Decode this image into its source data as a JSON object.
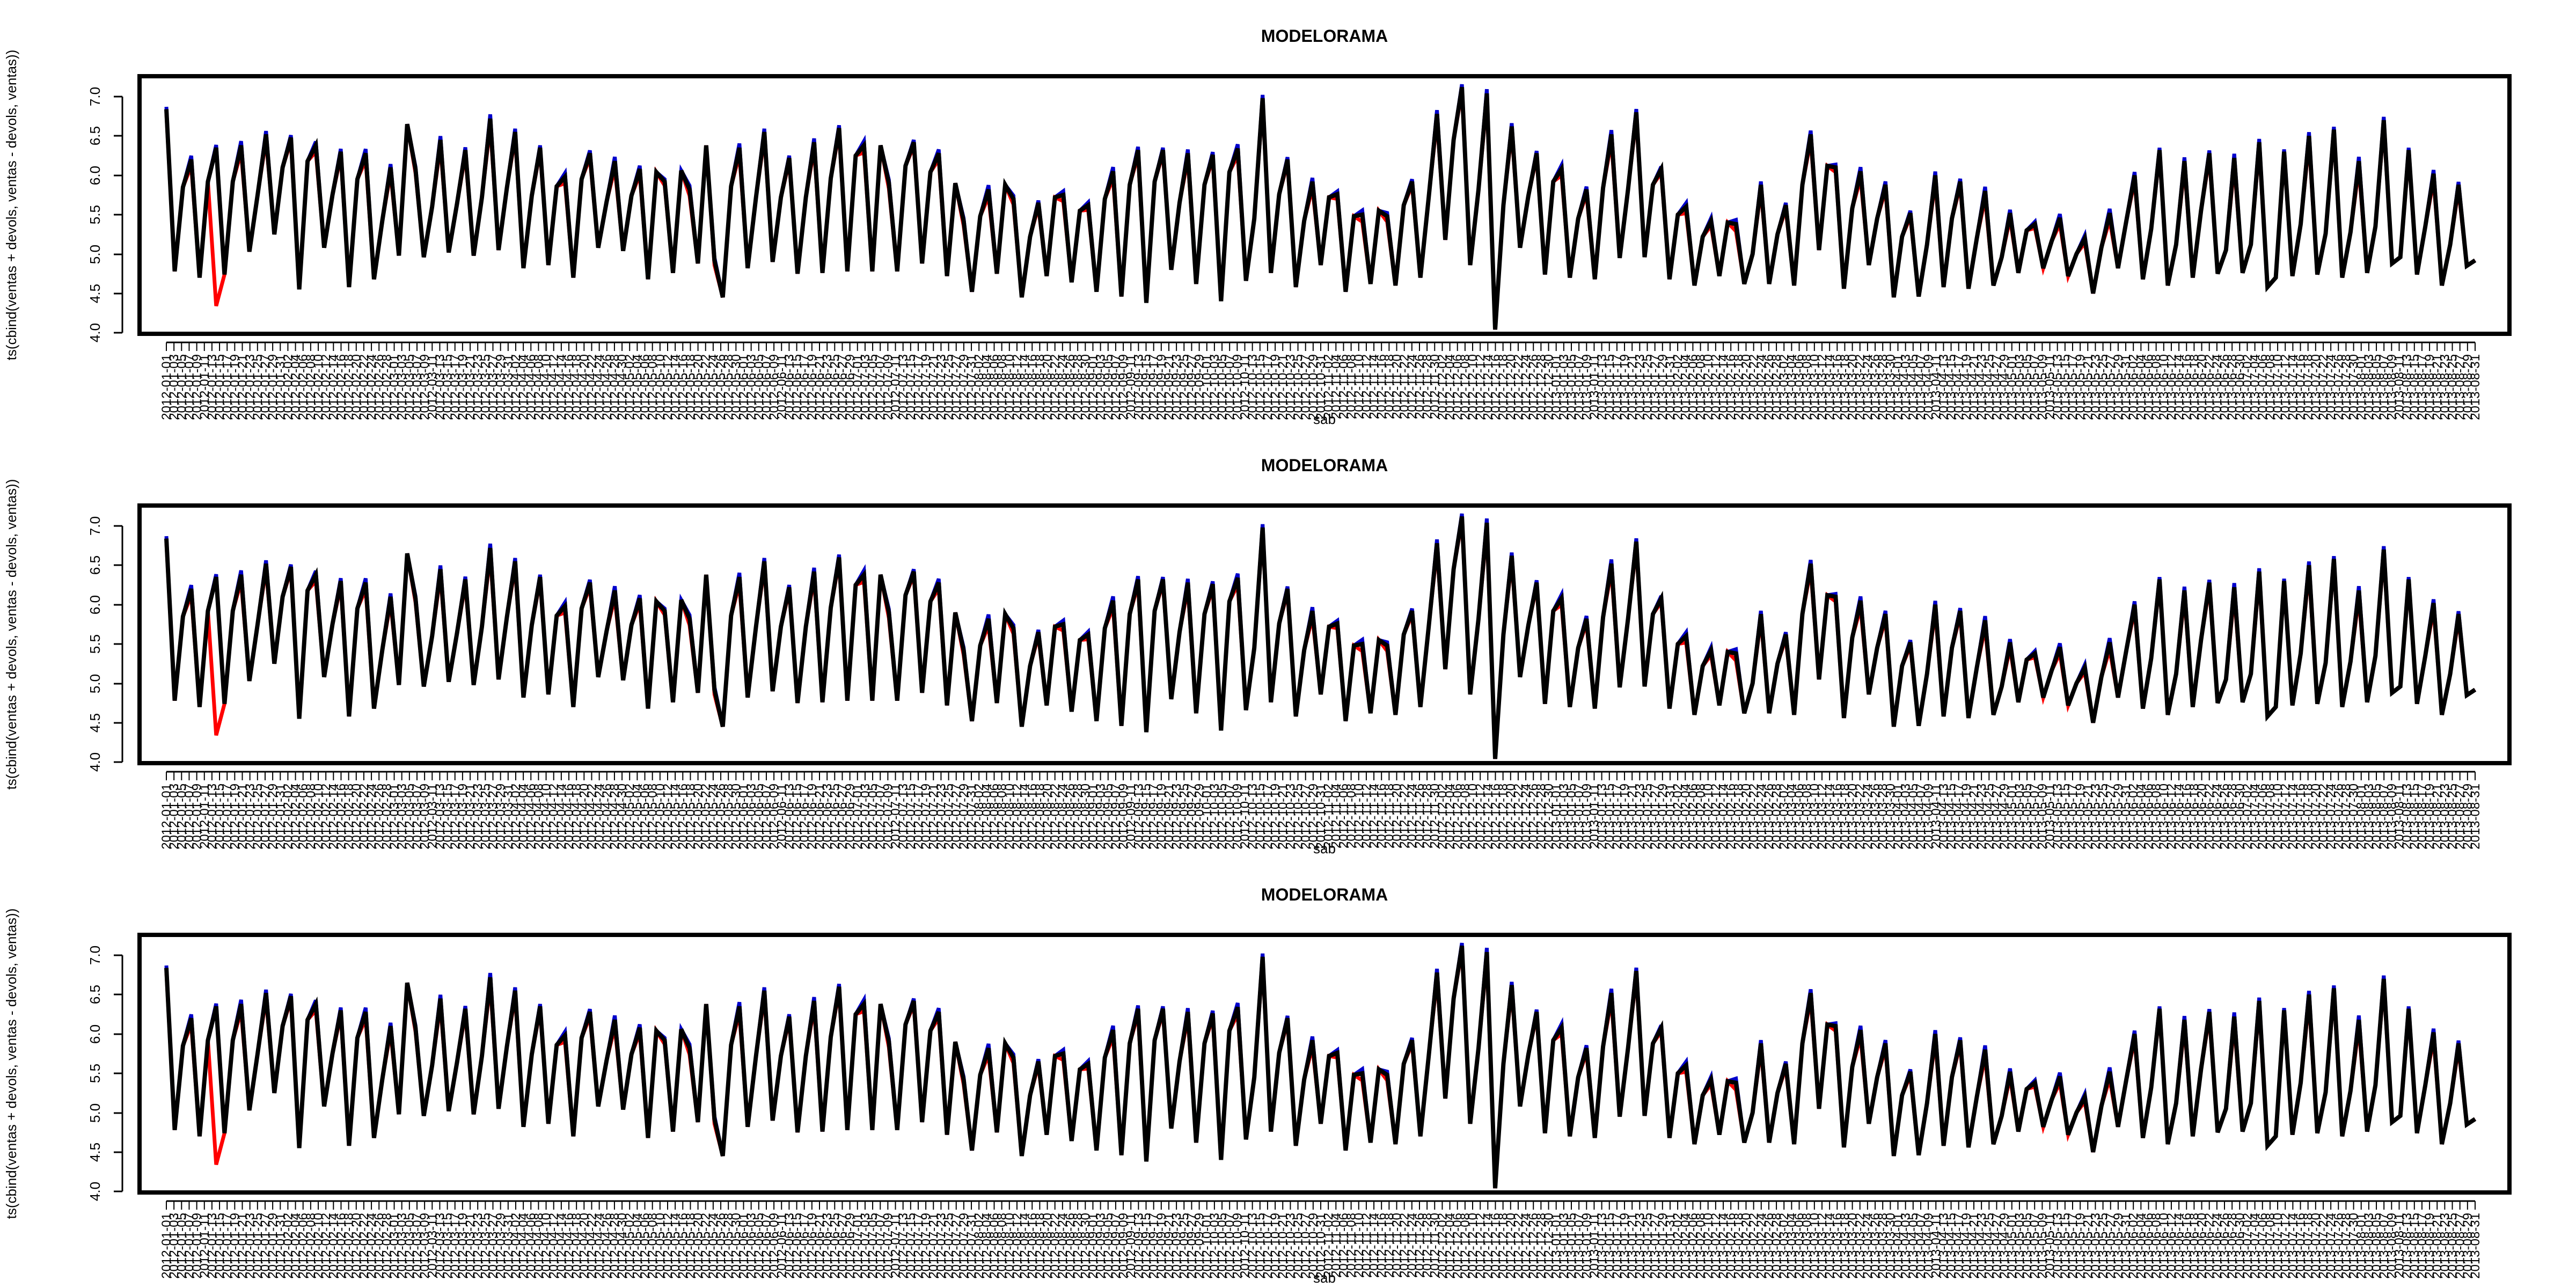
{
  "chart_data": [
    {
      "type": "line",
      "title": "MODELORAMA",
      "xlabel": "sab",
      "ylabel": "ts(cbind(ventas + devols, ventas - devols, ventas))",
      "ylim": [
        4.0,
        7.0
      ],
      "yticks": [
        "4.0",
        "4.5",
        "5.0",
        "5.5",
        "6.0",
        "6.5",
        "7.0"
      ],
      "x_start": "2012-01-01",
      "x_end": "2013-08-30",
      "x_ticks_every_days": 2,
      "grid": false,
      "legend": "none",
      "series": [
        {
          "color": "#0000cc"
        },
        {
          "color": "#ff0000"
        },
        {
          "color": "#000000"
        }
      ],
      "values": [
        6.84,
        4.78,
        5.85,
        6.2,
        4.7,
        5.92,
        6.35,
        4.74,
        5.92,
        6.38,
        5.03,
        5.76,
        6.52,
        5.25,
        6.1,
        6.48,
        4.55,
        6.18,
        6.38,
        5.08,
        5.75,
        6.3,
        4.58,
        5.95,
        6.28,
        4.68,
        5.42,
        6.1,
        4.98,
        6.65,
        6.08,
        4.96,
        5.6,
        6.45,
        5.02,
        5.64,
        6.32,
        4.98,
        5.72,
        6.72,
        5.05,
        5.84,
        6.55,
        4.82,
        5.74,
        6.35,
        4.86,
        5.86,
        5.98,
        4.7,
        5.95,
        6.28,
        5.08,
        5.66,
        6.18,
        5.04,
        5.74,
        6.08,
        4.68,
        6.04,
        5.92,
        4.76,
        6.06,
        5.82,
        4.88,
        6.38,
        4.92,
        4.45,
        5.86,
        6.35,
        4.82,
        5.72,
        6.55,
        4.9,
        5.72,
        6.22,
        4.75,
        5.72,
        6.42,
        4.76,
        5.96,
        6.6,
        4.78,
        6.25,
        6.38,
        4.78,
        6.38,
        5.9,
        4.78,
        6.12,
        6.42,
        4.88,
        6.04,
        6.28,
        4.72,
        5.9,
        5.42,
        4.52,
        5.48,
        5.82,
        4.75,
        5.88,
        5.7,
        4.45,
        5.22,
        5.65,
        4.72,
        5.72,
        5.75,
        4.64,
        5.55,
        5.62,
        4.52,
        5.7,
        6.05,
        4.46,
        5.88,
        6.32,
        4.38,
        5.92,
        6.32,
        4.8,
        5.65,
        6.28,
        4.62,
        5.88,
        6.26,
        4.4,
        6.04,
        6.34,
        4.66,
        5.45,
        6.98,
        4.76,
        5.76,
        6.2,
        4.58,
        5.42,
        5.92,
        4.86,
        5.72,
        5.76,
        4.52,
        5.48,
        5.5,
        4.62,
        5.55,
        5.48,
        4.6,
        5.62,
        5.92,
        4.7,
        5.72,
        6.78,
        5.18,
        6.45,
        7.12,
        4.86,
        5.82,
        7.04,
        4.04,
        5.62,
        6.62,
        5.08,
        5.74,
        6.28,
        4.74,
        5.92,
        6.08,
        4.7,
        5.45,
        5.82,
        4.68,
        5.84,
        6.52,
        4.95,
        5.82,
        6.8,
        4.96,
        5.88,
        6.08,
        4.68,
        5.5,
        5.6,
        4.6,
        5.22,
        5.42,
        4.72,
        5.4,
        5.38,
        4.62,
        5.0,
        5.88,
        4.62,
        5.25,
        5.62,
        4.6,
        5.88,
        6.52,
        5.05,
        6.12,
        6.1,
        4.56,
        5.58,
        6.05,
        4.86,
        5.45,
        5.88,
        4.45,
        5.22,
        5.52,
        4.46,
        5.12,
        6.0,
        4.58,
        5.45,
        5.92,
        4.56,
        5.2,
        5.8,
        4.6,
        4.96,
        5.52,
        4.76,
        5.3,
        5.38,
        4.82,
        5.16,
        5.46,
        4.72,
        5.0,
        5.2,
        4.5,
        5.08,
        5.52,
        4.82,
        5.42,
        6.0,
        4.68,
        5.32,
        6.32,
        4.6,
        5.12,
        6.18,
        4.7,
        5.55,
        6.28,
        4.75,
        5.05,
        6.22,
        4.76,
        5.12,
        6.42,
        4.58,
        4.7,
        6.3,
        4.72,
        5.38,
        6.5,
        4.74,
        5.26,
        6.58,
        4.7,
        5.28,
        6.18,
        4.76,
        5.35,
        6.7,
        4.88,
        4.96,
        6.32,
        4.74,
        5.35,
        6.02,
        4.6,
        5.12,
        5.88,
        4.85,
        4.92
      ]
    },
    {
      "type": "line",
      "title": "MODELORAMA",
      "xlabel": "sab",
      "ylabel": "ts(cbind(ventas + devols, ventas - devols, ventas))",
      "ylim": [
        4.0,
        7.0
      ],
      "yticks": [
        "4.0",
        "4.5",
        "5.0",
        "5.5",
        "6.0",
        "6.5",
        "7.0"
      ],
      "x_start": "2012-01-01",
      "x_end": "2013-08-30",
      "x_ticks_every_days": 2,
      "grid": false,
      "legend": "none",
      "series": [
        {
          "color": "#0000cc"
        },
        {
          "color": "#ff0000"
        },
        {
          "color": "#000000"
        }
      ]
    },
    {
      "type": "line",
      "title": "MODELORAMA",
      "xlabel": "sab",
      "ylabel": "ts(cbind(ventas + devols, ventas - devols, ventas))",
      "ylim": [
        4.0,
        7.0
      ],
      "yticks": [
        "4.0",
        "4.5",
        "5.0",
        "5.5",
        "6.0",
        "6.5",
        "7.0"
      ],
      "x_start": "2012-01-01",
      "x_end": "2013-08-30",
      "x_ticks_every_days": 2,
      "grid": false,
      "legend": "none",
      "series": [
        {
          "color": "#0000cc"
        },
        {
          "color": "#ff0000"
        },
        {
          "color": "#000000"
        }
      ]
    }
  ]
}
